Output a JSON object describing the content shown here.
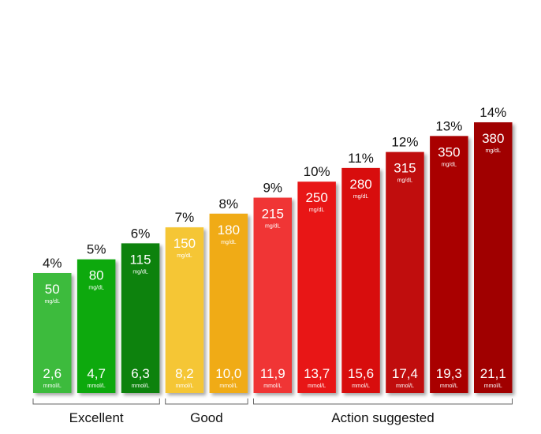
{
  "chart_data": {
    "type": "bar",
    "categories": [
      "4%",
      "5%",
      "6%",
      "7%",
      "8%",
      "9%",
      "10%",
      "11%",
      "12%",
      "13%",
      "14%"
    ],
    "series": [
      {
        "values": [
          50,
          80,
          115,
          150,
          180,
          215,
          250,
          280,
          315,
          350,
          380
        ]
      }
    ],
    "mgdl_labels": [
      "50",
      "80",
      "115",
      "150",
      "180",
      "215",
      "250",
      "280",
      "315",
      "350",
      "380"
    ],
    "mgdl_unit": "mg/dL",
    "mmol_labels": [
      "2,6",
      "4,7",
      "6,3",
      "8,2",
      "10,0",
      "11,9",
      "13,7",
      "15,6",
      "17,4",
      "19,3",
      "21,1"
    ],
    "mmol_unit": "mmol/L",
    "bar_colors": [
      "#3dbb3d",
      "#11a911",
      "#0b820b",
      "#f5c636",
      "#f0ab12",
      "#f03535",
      "#e81919",
      "#d80e0e",
      "#c00b0b",
      "#a90606",
      "#a00404"
    ],
    "groups": [
      {
        "label": "Excellent",
        "start": 0,
        "end": 2
      },
      {
        "label": "Good",
        "start": 3,
        "end": 4
      },
      {
        "label": "Action suggested",
        "start": 5,
        "end": 10
      }
    ],
    "ylim": [
      0,
      380
    ],
    "grid": false,
    "legend": "none"
  }
}
